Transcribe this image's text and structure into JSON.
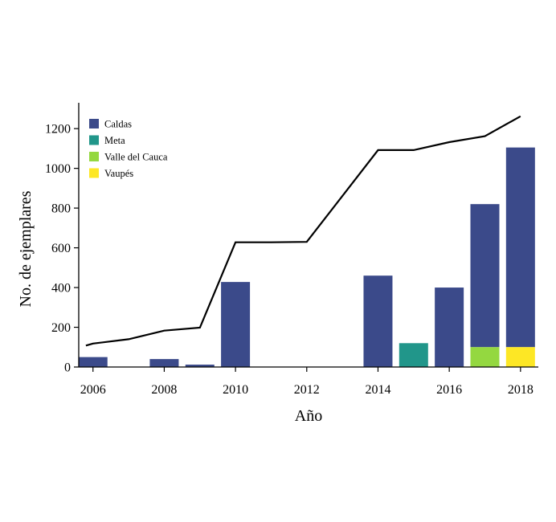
{
  "chart_data": {
    "type": "bar",
    "xlabel": "Año",
    "ylabel": "No. de ejemplares",
    "xlim": [
      2005.6,
      2018.5
    ],
    "ylim": [
      0,
      1330
    ],
    "x_ticks": [
      2006,
      2008,
      2010,
      2012,
      2014,
      2016,
      2018
    ],
    "y_ticks": [
      0,
      200,
      400,
      600,
      800,
      1000,
      1200
    ],
    "grid": false,
    "legend_position": "top-left",
    "series": [
      {
        "name": "Caldas",
        "color": "#3b4a8a",
        "points": [
          {
            "x": 2006,
            "base": 0,
            "value": 50
          },
          {
            "x": 2008,
            "base": 0,
            "value": 40
          },
          {
            "x": 2009,
            "base": 0,
            "value": 12
          },
          {
            "x": 2010,
            "base": 0,
            "value": 428
          },
          {
            "x": 2014,
            "base": 0,
            "value": 460
          },
          {
            "x": 2016,
            "base": 0,
            "value": 400
          },
          {
            "x": 2017,
            "base": 100,
            "value": 720
          },
          {
            "x": 2018,
            "base": 100,
            "value": 1005
          }
        ]
      },
      {
        "name": "Meta",
        "color": "#21968a",
        "points": [
          {
            "x": 2015,
            "base": 0,
            "value": 120
          }
        ]
      },
      {
        "name": "Valle del Cauca",
        "color": "#94d840",
        "points": [
          {
            "x": 2017,
            "base": 0,
            "value": 100
          }
        ]
      },
      {
        "name": "Vaupés",
        "color": "#fde725",
        "points": [
          {
            "x": 2018,
            "base": 0,
            "value": 100
          }
        ]
      }
    ],
    "cumulative_line": {
      "color": "#000000",
      "x": [
        2005.8,
        2006,
        2007,
        2008,
        2009,
        2010,
        2011,
        2012,
        2014,
        2015,
        2016,
        2017,
        2018
      ],
      "y": [
        108,
        118,
        140,
        183,
        198,
        628,
        628,
        630,
        1092,
        1092,
        1132,
        1162,
        1262
      ]
    }
  }
}
